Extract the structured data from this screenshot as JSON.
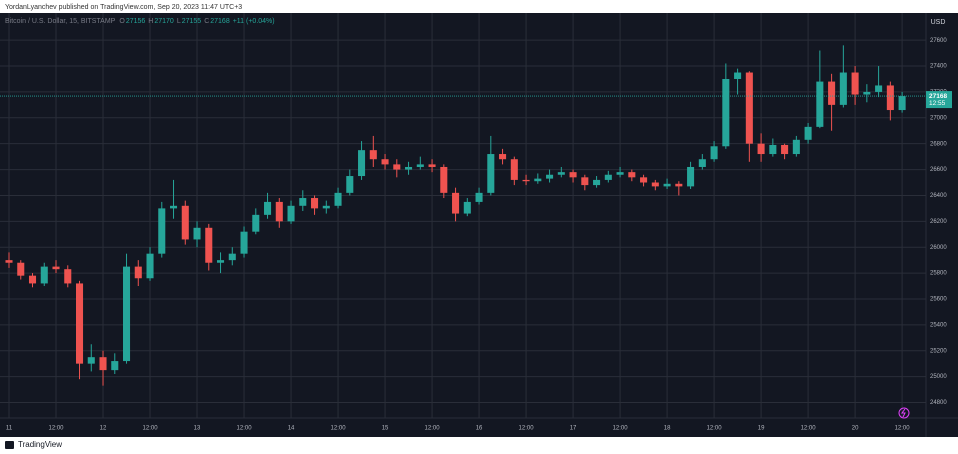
{
  "header": {
    "text": "YordanLyanchev published on TradingView.com, Sep 20, 2023 11:47 UTC+3"
  },
  "footer": {
    "brand": "TradingView"
  },
  "chart_data": {
    "type": "candlestick",
    "symbol": "Bitcoin / U.S. Dollar, 15, BITSTAMP",
    "legend_values": [
      {
        "label": "O",
        "value": 27156
      },
      {
        "label": "H",
        "value": 27170
      },
      {
        "label": "L",
        "value": 27155
      },
      {
        "label": "C",
        "value": 27168
      }
    ],
    "change": "+11 (+0.04%)",
    "currency": "USD",
    "last_price": 27168,
    "countdown": "12:55",
    "up_color": "#26a69a",
    "down_color": "#ef5350",
    "grid": true,
    "xlim": [
      -2.3,
      234.1
    ],
    "ylim": [
      24680,
      27810
    ],
    "yticks": [
      24800,
      25000,
      25200,
      25400,
      25600,
      25800,
      26000,
      26200,
      26400,
      26600,
      26800,
      27000,
      27200,
      27400,
      27600
    ],
    "xticks": [
      {
        "value": 0,
        "label": "11"
      },
      {
        "value": 12,
        "label": "12:00"
      },
      {
        "value": 24,
        "label": "12"
      },
      {
        "value": 36,
        "label": "12:00"
      },
      {
        "value": 48,
        "label": "13"
      },
      {
        "value": 60,
        "label": "12:00"
      },
      {
        "value": 72,
        "label": "14"
      },
      {
        "value": 84,
        "label": "12:00"
      },
      {
        "value": 96,
        "label": "15"
      },
      {
        "value": 108,
        "label": "12:00"
      },
      {
        "value": 120,
        "label": "16"
      },
      {
        "value": 132,
        "label": "12:00"
      },
      {
        "value": 144,
        "label": "17"
      },
      {
        "value": 156,
        "label": "12:00"
      },
      {
        "value": 168,
        "label": "18"
      },
      {
        "value": 180,
        "label": "12:00"
      },
      {
        "value": 192,
        "label": "19"
      },
      {
        "value": 204,
        "label": "12:00"
      },
      {
        "value": 216,
        "label": "20"
      },
      {
        "value": 228,
        "label": "12:00"
      }
    ],
    "x": [
      0,
      3,
      6,
      9,
      12,
      15,
      18,
      21,
      24,
      27,
      30,
      33,
      36,
      39,
      42,
      45,
      48,
      51,
      54,
      57,
      60,
      63,
      66,
      69,
      72,
      75,
      78,
      81,
      84,
      87,
      90,
      93,
      96,
      99,
      102,
      105,
      108,
      111,
      114,
      117,
      120,
      123,
      126,
      129,
      132,
      135,
      138,
      141,
      144,
      147,
      150,
      153,
      156,
      159,
      162,
      165,
      168,
      171,
      174,
      177,
      180,
      183,
      186,
      189,
      192,
      195,
      198,
      201,
      204,
      207,
      210,
      213,
      216,
      219,
      222,
      225,
      228
    ],
    "ohlc": [
      [
        25900,
        25960,
        25840,
        25880
      ],
      [
        25880,
        25900,
        25750,
        25780
      ],
      [
        25780,
        25800,
        25690,
        25720
      ],
      [
        25720,
        25880,
        25700,
        25850
      ],
      [
        25850,
        25900,
        25800,
        25830
      ],
      [
        25830,
        25860,
        25690,
        25720
      ],
      [
        25720,
        25740,
        24980,
        25100
      ],
      [
        25100,
        25250,
        25040,
        25150
      ],
      [
        25150,
        25200,
        24930,
        25050
      ],
      [
        25050,
        25180,
        25020,
        25120
      ],
      [
        25120,
        25950,
        25100,
        25850
      ],
      [
        25850,
        25900,
        25700,
        25760
      ],
      [
        25760,
        26000,
        25740,
        25950
      ],
      [
        25950,
        26350,
        25920,
        26300
      ],
      [
        26300,
        26520,
        26220,
        26320
      ],
      [
        26320,
        26360,
        26020,
        26060
      ],
      [
        26060,
        26200,
        26000,
        26150
      ],
      [
        26150,
        26180,
        25820,
        25880
      ],
      [
        25880,
        25960,
        25800,
        25900
      ],
      [
        25900,
        26000,
        25860,
        25950
      ],
      [
        25950,
        26160,
        25920,
        26120
      ],
      [
        26120,
        26300,
        26100,
        26250
      ],
      [
        26250,
        26420,
        26220,
        26350
      ],
      [
        26350,
        26380,
        26150,
        26200
      ],
      [
        26200,
        26360,
        26180,
        26320
      ],
      [
        26320,
        26440,
        26280,
        26380
      ],
      [
        26380,
        26400,
        26250,
        26300
      ],
      [
        26300,
        26360,
        26260,
        26320
      ],
      [
        26320,
        26460,
        26300,
        26420
      ],
      [
        26420,
        26600,
        26400,
        26550
      ],
      [
        26550,
        26820,
        26520,
        26750
      ],
      [
        26750,
        26860,
        26620,
        26680
      ],
      [
        26680,
        26720,
        26600,
        26640
      ],
      [
        26640,
        26680,
        26540,
        26600
      ],
      [
        26600,
        26660,
        26560,
        26620
      ],
      [
        26620,
        26700,
        26600,
        26640
      ],
      [
        26640,
        26680,
        26580,
        26620
      ],
      [
        26620,
        26640,
        26380,
        26420
      ],
      [
        26420,
        26460,
        26200,
        26260
      ],
      [
        26260,
        26380,
        26240,
        26350
      ],
      [
        26350,
        26460,
        26330,
        26420
      ],
      [
        26420,
        26860,
        26400,
        26720
      ],
      [
        26720,
        26760,
        26640,
        26680
      ],
      [
        26680,
        26700,
        26480,
        26520
      ],
      [
        26520,
        26560,
        26480,
        26510
      ],
      [
        26510,
        26570,
        26490,
        26530
      ],
      [
        26530,
        26600,
        26500,
        26560
      ],
      [
        26560,
        26620,
        26540,
        26580
      ],
      [
        26580,
        26600,
        26500,
        26540
      ],
      [
        26540,
        26560,
        26440,
        26480
      ],
      [
        26480,
        26550,
        26460,
        26520
      ],
      [
        26520,
        26590,
        26500,
        26560
      ],
      [
        26560,
        26620,
        26540,
        26580
      ],
      [
        26580,
        26600,
        26510,
        26540
      ],
      [
        26540,
        26560,
        26470,
        26500
      ],
      [
        26500,
        26520,
        26440,
        26470
      ],
      [
        26470,
        26530,
        26450,
        26490
      ],
      [
        26490,
        26510,
        26400,
        26470
      ],
      [
        26470,
        26660,
        26450,
        26620
      ],
      [
        26620,
        26720,
        26600,
        26680
      ],
      [
        26680,
        26820,
        26660,
        26780
      ],
      [
        26780,
        27420,
        26760,
        27300
      ],
      [
        27300,
        27380,
        27180,
        27350
      ],
      [
        27350,
        27360,
        26660,
        26800
      ],
      [
        26800,
        26880,
        26660,
        26720
      ],
      [
        26720,
        26840,
        26700,
        26790
      ],
      [
        26790,
        26800,
        26680,
        26720
      ],
      [
        26720,
        26860,
        26700,
        26830
      ],
      [
        26830,
        26960,
        26800,
        26930
      ],
      [
        26930,
        27520,
        26920,
        27280
      ],
      [
        27280,
        27340,
        26900,
        27100
      ],
      [
        27100,
        27560,
        27080,
        27350
      ],
      [
        27350,
        27400,
        27100,
        27180
      ],
      [
        27180,
        27260,
        27120,
        27200
      ],
      [
        27200,
        27400,
        27160,
        27250
      ],
      [
        27250,
        27280,
        26980,
        27060
      ],
      [
        27060,
        27200,
        27040,
        27168
      ]
    ]
  }
}
